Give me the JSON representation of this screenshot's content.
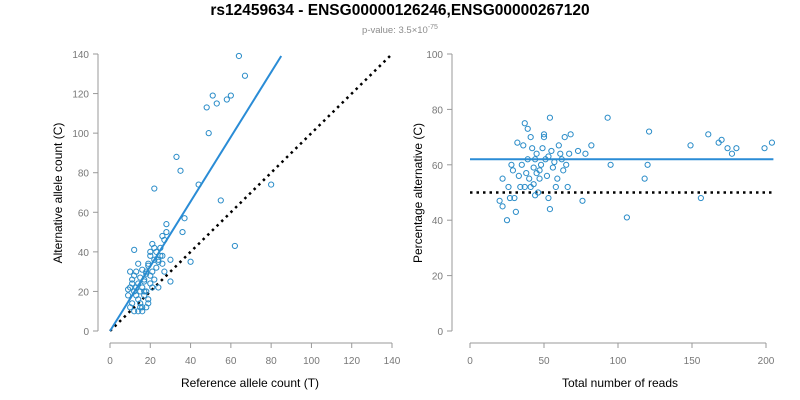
{
  "title": "rs12459634 - ENSG00000126246,ENSG00000267120",
  "subtitle": {
    "prefix": "p-value: 3.5×10",
    "exponent": "-75"
  },
  "colors": {
    "points": "#2a8cc8",
    "fit_line": "#2a8cd6",
    "reference_line": "#000000",
    "axis": "#999999"
  },
  "chart_data": [
    {
      "type": "scatter",
      "xlabel": "Reference allele count (T)",
      "ylabel": "Alternative allele count (C)",
      "xlim": [
        0,
        140
      ],
      "ylim": [
        0,
        140
      ],
      "xticks": [
        "0",
        "20",
        "40",
        "60",
        "80",
        "100",
        "120",
        "140"
      ],
      "yticks": [
        "0",
        "20",
        "40",
        "60",
        "80",
        "100",
        "120",
        "140"
      ],
      "points": [
        [
          10,
          30
        ],
        [
          12,
          41
        ],
        [
          10,
          22
        ],
        [
          9,
          21
        ],
        [
          11,
          24
        ],
        [
          12,
          20
        ],
        [
          13,
          18
        ],
        [
          14,
          24
        ],
        [
          15,
          27
        ],
        [
          14,
          34
        ],
        [
          16,
          31
        ],
        [
          17,
          25
        ],
        [
          18,
          29
        ],
        [
          19,
          33
        ],
        [
          20,
          38
        ],
        [
          21,
          44
        ],
        [
          22,
          36
        ],
        [
          23,
          40
        ],
        [
          24,
          35
        ],
        [
          25,
          42
        ],
        [
          26,
          48
        ],
        [
          27,
          46
        ],
        [
          28,
          50
        ],
        [
          22,
          72
        ],
        [
          30,
          25
        ],
        [
          14,
          16
        ],
        [
          15,
          14
        ],
        [
          16,
          12
        ],
        [
          17,
          18
        ],
        [
          18,
          20
        ],
        [
          19,
          16
        ],
        [
          20,
          24
        ],
        [
          13,
          30
        ],
        [
          12,
          28
        ],
        [
          11,
          14
        ],
        [
          10,
          12
        ],
        [
          9,
          18
        ],
        [
          15,
          20
        ],
        [
          16,
          22
        ],
        [
          17,
          26
        ],
        [
          18,
          30
        ],
        [
          19,
          34
        ],
        [
          20,
          28
        ],
        [
          21,
          30
        ],
        [
          22,
          26
        ],
        [
          23,
          32
        ],
        [
          24,
          36
        ],
        [
          25,
          38
        ],
        [
          26,
          34
        ],
        [
          27,
          30
        ],
        [
          18,
          12
        ],
        [
          19,
          14
        ],
        [
          16,
          10
        ],
        [
          14,
          10
        ],
        [
          12,
          10
        ],
        [
          15,
          12
        ],
        [
          13,
          22
        ],
        [
          11,
          26
        ],
        [
          17,
          20
        ],
        [
          21,
          22
        ],
        [
          28,
          54
        ],
        [
          30,
          36
        ],
        [
          33,
          88
        ],
        [
          35,
          81
        ],
        [
          37,
          57
        ],
        [
          36,
          50
        ],
        [
          40,
          35
        ],
        [
          44,
          74
        ],
        [
          48,
          113
        ],
        [
          49,
          100
        ],
        [
          51,
          119
        ],
        [
          53,
          115
        ],
        [
          55,
          66
        ],
        [
          58,
          117
        ],
        [
          60,
          119
        ],
        [
          64,
          139
        ],
        [
          67,
          129
        ],
        [
          62,
          43
        ],
        [
          80,
          74
        ],
        [
          24,
          22
        ],
        [
          26,
          38
        ],
        [
          20,
          40
        ],
        [
          22,
          42
        ]
      ],
      "fit_line": {
        "x": [
          0,
          85
        ],
        "y": [
          0,
          139
        ]
      },
      "reference_line": {
        "x": [
          0,
          139
        ],
        "y": [
          0,
          139
        ]
      }
    },
    {
      "type": "scatter",
      "xlabel": "Total number of reads",
      "ylabel": "Percentage alternative (C)",
      "xlim": [
        0,
        200
      ],
      "ylim": [
        0,
        100
      ],
      "xticks": [
        "0",
        "50",
        "100",
        "150",
        "200"
      ],
      "yticks": [
        "0",
        "20",
        "40",
        "60",
        "80",
        "100"
      ],
      "points": [
        [
          20,
          47
        ],
        [
          22,
          45
        ],
        [
          22,
          55
        ],
        [
          25,
          40
        ],
        [
          27,
          48
        ],
        [
          28,
          60
        ],
        [
          29,
          58
        ],
        [
          30,
          48
        ],
        [
          31,
          43
        ],
        [
          32,
          68
        ],
        [
          33,
          56
        ],
        [
          34,
          52
        ],
        [
          35,
          60
        ],
        [
          36,
          67
        ],
        [
          37,
          52
        ],
        [
          38,
          57
        ],
        [
          39,
          62
        ],
        [
          40,
          55
        ],
        [
          41,
          52
        ],
        [
          41,
          70
        ],
        [
          42,
          66
        ],
        [
          43,
          53
        ],
        [
          44,
          49
        ],
        [
          44,
          62
        ],
        [
          45,
          64
        ],
        [
          46,
          50
        ],
        [
          47,
          55
        ],
        [
          47,
          58
        ],
        [
          48,
          60
        ],
        [
          49,
          66
        ],
        [
          50,
          70
        ],
        [
          50,
          71
        ],
        [
          51,
          62
        ],
        [
          52,
          56
        ],
        [
          53,
          48
        ],
        [
          53,
          63
        ],
        [
          54,
          44
        ],
        [
          54,
          77
        ],
        [
          55,
          65
        ],
        [
          56,
          59
        ],
        [
          57,
          61
        ],
        [
          58,
          52
        ],
        [
          59,
          55
        ],
        [
          60,
          67
        ],
        [
          61,
          64
        ],
        [
          62,
          62
        ],
        [
          63,
          58
        ],
        [
          64,
          70
        ],
        [
          65,
          60
        ],
        [
          66,
          52
        ],
        [
          67,
          64
        ],
        [
          68,
          71
        ],
        [
          73,
          65
        ],
        [
          76,
          47
        ],
        [
          78,
          64
        ],
        [
          82,
          67
        ],
        [
          93,
          77
        ],
        [
          95,
          60
        ],
        [
          106,
          41
        ],
        [
          118,
          55
        ],
        [
          120,
          60
        ],
        [
          121,
          72
        ],
        [
          149,
          67
        ],
        [
          156,
          48
        ],
        [
          161,
          71
        ],
        [
          168,
          68
        ],
        [
          170,
          69
        ],
        [
          174,
          66
        ],
        [
          177,
          64
        ],
        [
          180,
          66
        ],
        [
          199,
          66
        ],
        [
          204,
          68
        ],
        [
          37,
          75
        ],
        [
          39,
          73
        ],
        [
          43,
          59
        ],
        [
          45,
          57
        ],
        [
          26,
          52
        ]
      ],
      "fit_line": {
        "x": [
          0,
          205
        ],
        "y": [
          62,
          62
        ]
      },
      "reference_line": {
        "x": [
          0,
          205
        ],
        "y": [
          50,
          50
        ]
      }
    }
  ]
}
